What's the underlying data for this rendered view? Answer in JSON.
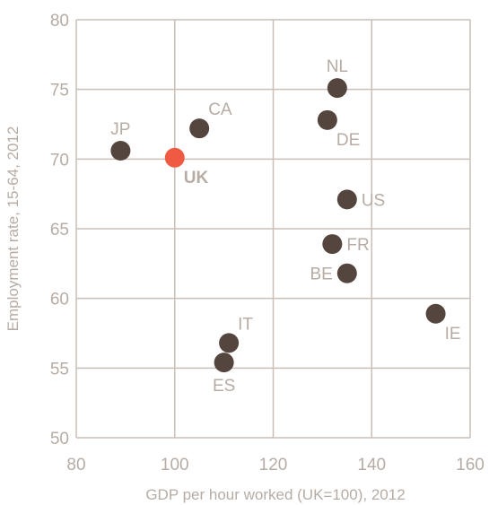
{
  "chart_data": {
    "type": "scatter",
    "xlabel": "GDP per hour worked (UK=100), 2012",
    "ylabel": "Employment rate, 15-64, 2012",
    "xlim": [
      80,
      160
    ],
    "ylim": [
      50,
      80
    ],
    "x_ticks": [
      80,
      100,
      120,
      140,
      160
    ],
    "y_ticks": [
      50,
      55,
      60,
      65,
      70,
      75,
      80
    ],
    "grid": true,
    "legend": "none",
    "colors": {
      "default": "#54463e",
      "highlight": "#ef5a43",
      "grid": "#c9bfb7",
      "text": "#b7aca4"
    },
    "points": [
      {
        "label": "JP",
        "x": 89,
        "y": 70.6,
        "label_pos": "top"
      },
      {
        "label": "UK",
        "x": 100,
        "y": 70.1,
        "label_pos": "bottom-right",
        "highlight": true
      },
      {
        "label": "CA",
        "x": 105,
        "y": 72.2,
        "label_pos": "top-right"
      },
      {
        "label": "NL",
        "x": 133,
        "y": 75.1,
        "label_pos": "top"
      },
      {
        "label": "DE",
        "x": 131,
        "y": 72.8,
        "label_pos": "bottom-right"
      },
      {
        "label": "US",
        "x": 135,
        "y": 67.1,
        "label_pos": "right"
      },
      {
        "label": "FR",
        "x": 132,
        "y": 63.9,
        "label_pos": "right"
      },
      {
        "label": "BE",
        "x": 135,
        "y": 61.8,
        "label_pos": "left"
      },
      {
        "label": "IE",
        "x": 153,
        "y": 58.9,
        "label_pos": "bottom-right"
      },
      {
        "label": "IT",
        "x": 111,
        "y": 56.8,
        "label_pos": "top-right"
      },
      {
        "label": "ES",
        "x": 110,
        "y": 55.4,
        "label_pos": "bottom"
      }
    ]
  }
}
